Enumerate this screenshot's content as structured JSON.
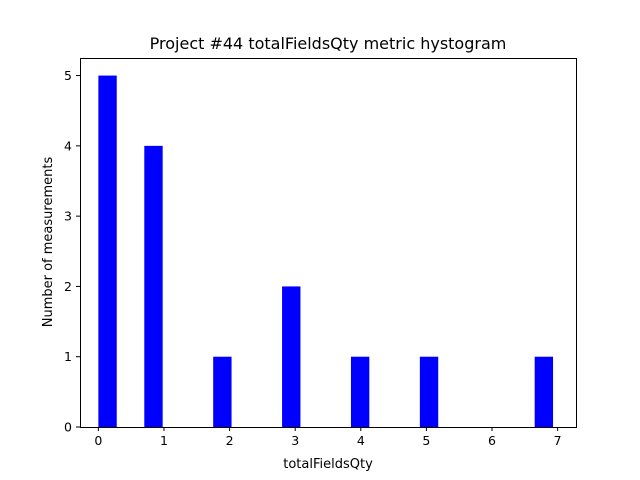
{
  "chart_data": {
    "type": "bar",
    "title": "Project #44 totalFieldsQty metric hystogram",
    "xlabel": "totalFieldsQty",
    "ylabel": "Number of measurements",
    "xlim": [
      -0.28,
      7.28
    ],
    "ylim": [
      0,
      5.25
    ],
    "xticks": [
      0,
      1,
      2,
      3,
      4,
      5,
      6,
      7
    ],
    "yticks": [
      0,
      1,
      2,
      3,
      4,
      5
    ],
    "bar_color": "#0000ff",
    "bins": [
      {
        "x0": 0.0,
        "x1": 0.28,
        "count": 5
      },
      {
        "x0": 0.7,
        "x1": 0.98,
        "count": 4
      },
      {
        "x0": 1.75,
        "x1": 2.03,
        "count": 1
      },
      {
        "x0": 2.8,
        "x1": 3.08,
        "count": 2
      },
      {
        "x0": 3.85,
        "x1": 4.13,
        "count": 1
      },
      {
        "x0": 4.9,
        "x1": 5.18,
        "count": 1
      },
      {
        "x0": 6.65,
        "x1": 6.93,
        "count": 1
      }
    ],
    "grid": false,
    "legend": "none"
  }
}
